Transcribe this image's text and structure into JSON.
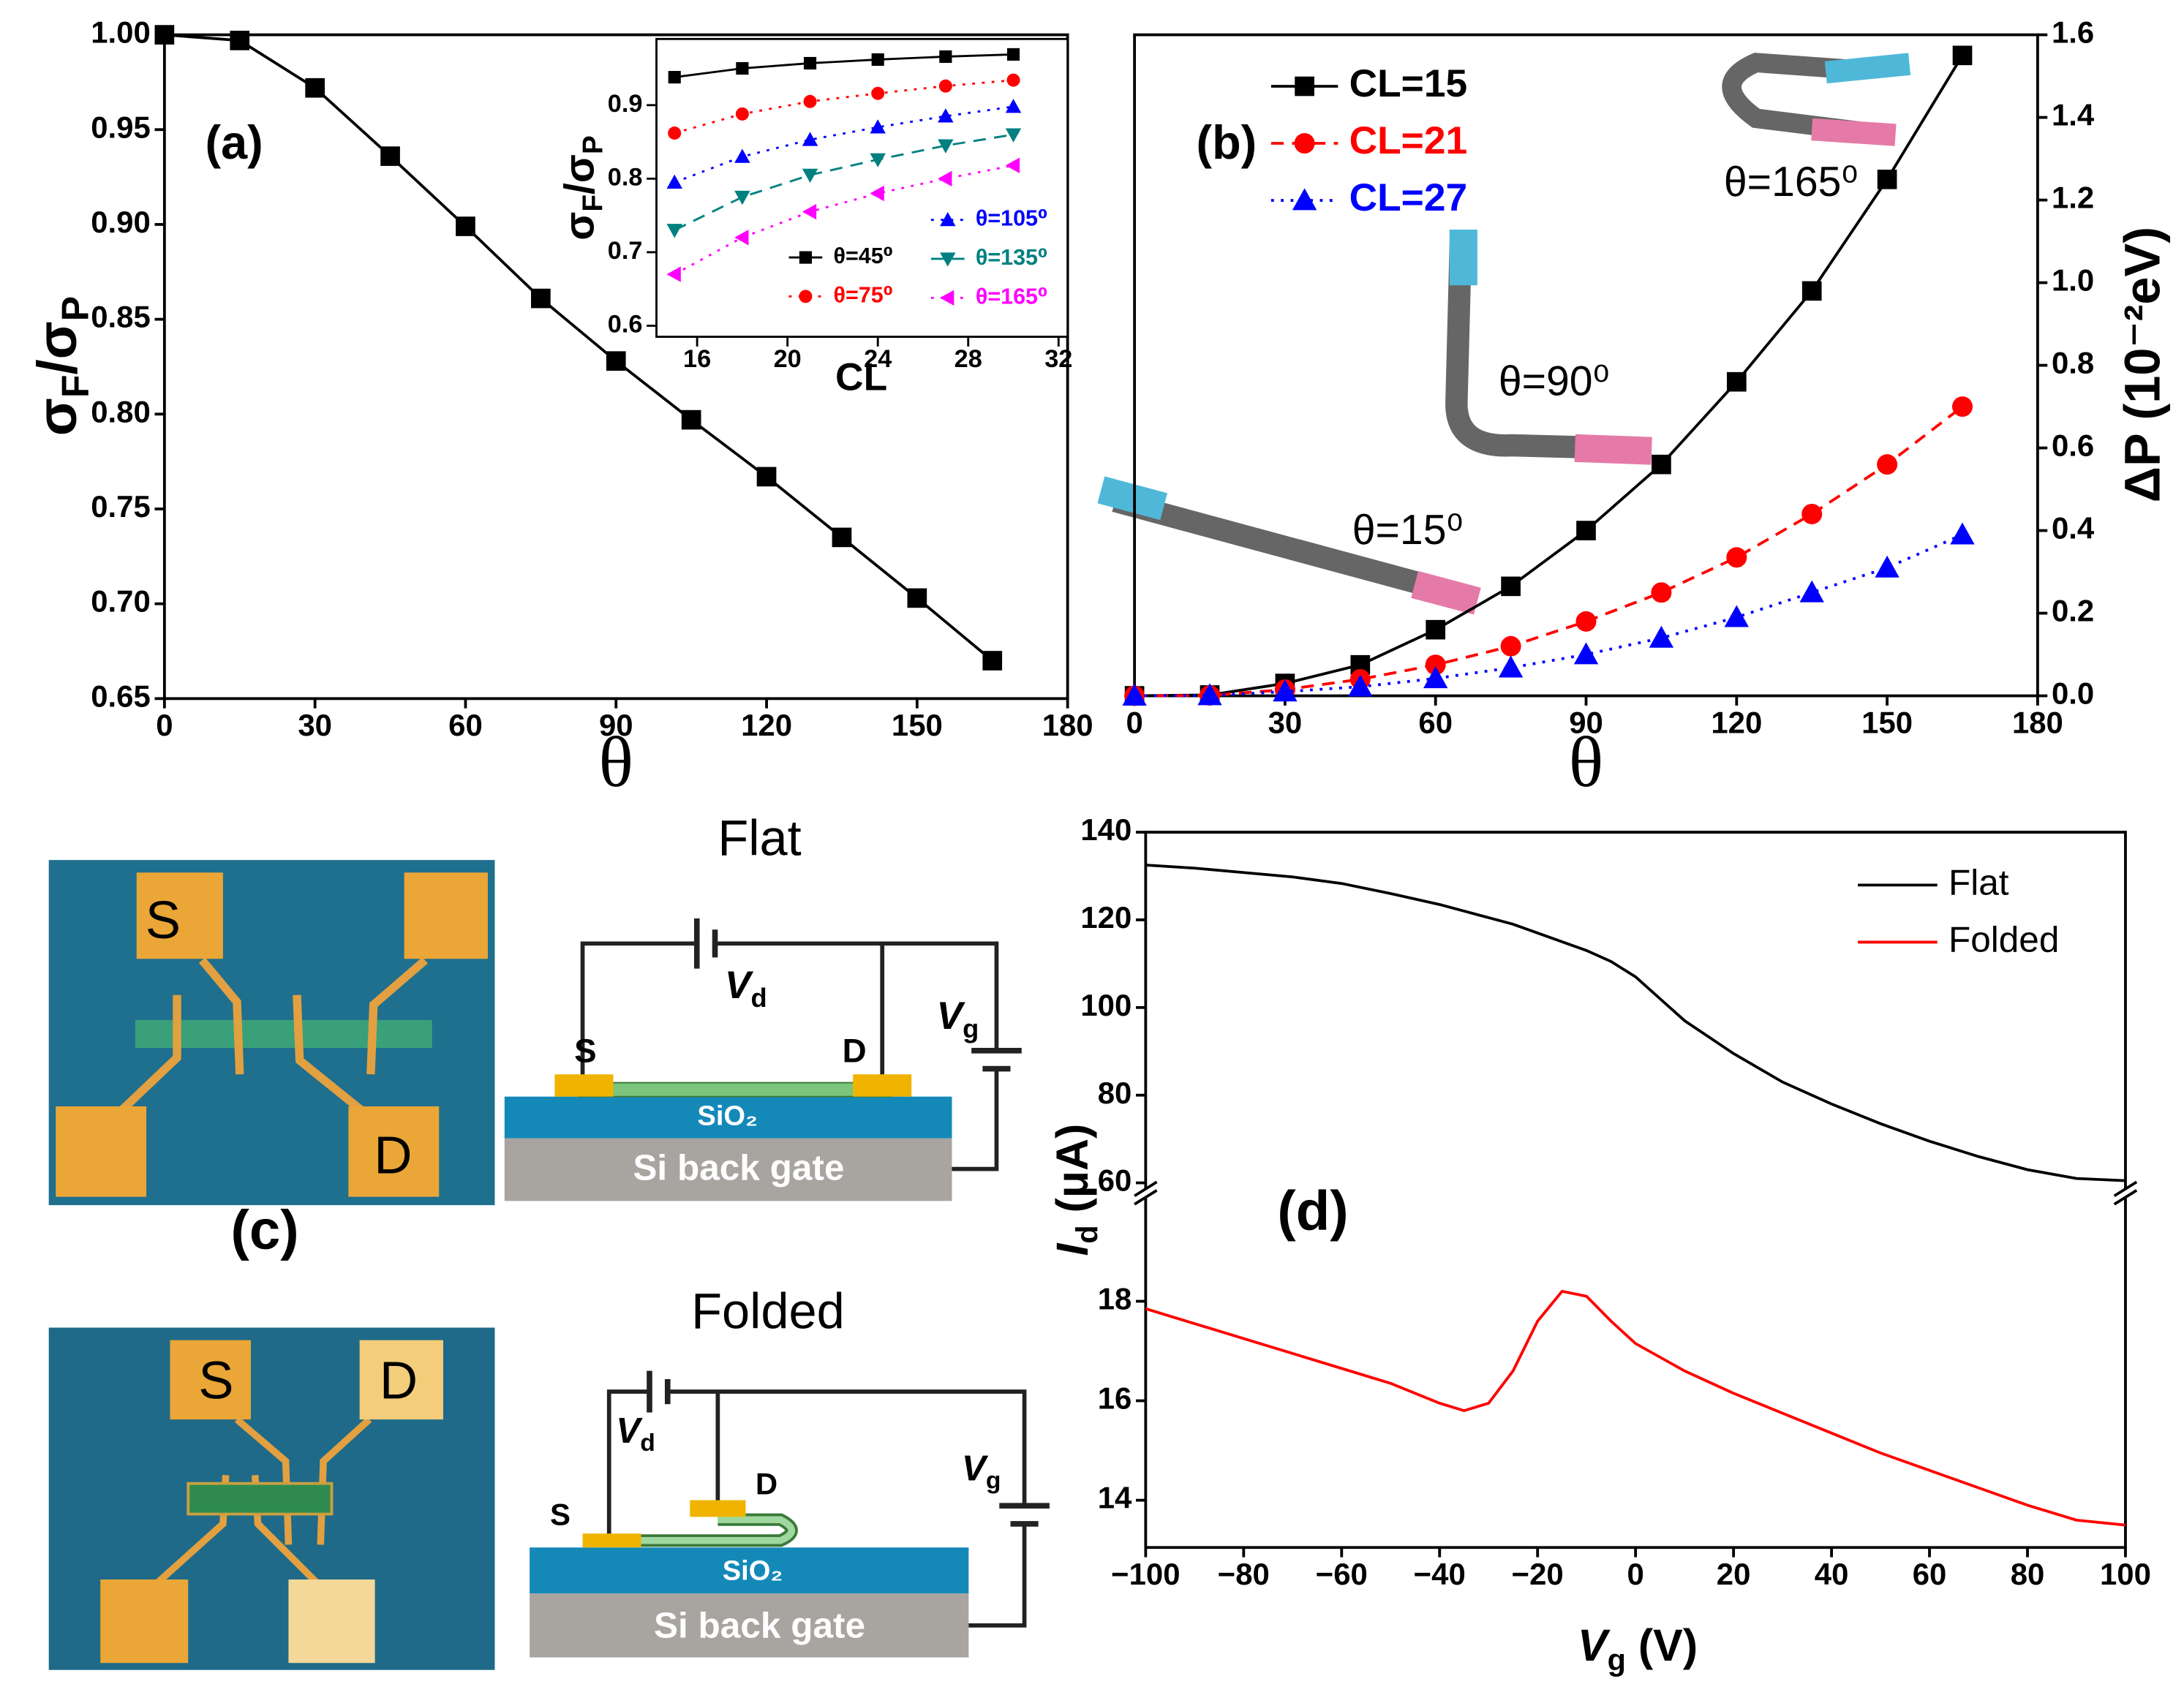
{
  "chart_data": [
    {
      "type": "line",
      "xlim": [
        0,
        180
      ],
      "ylim": [
        0.65,
        1.0
      ],
      "xticks": [
        0,
        30,
        60,
        90,
        120,
        150,
        180
      ],
      "yticks": [
        0.65,
        {
          "value": 0.7,
          "label": "0.70"
        },
        0.75,
        {
          "value": 0.8,
          "label": "0.80"
        },
        0.85,
        {
          "value": 0.9,
          "label": "0.90"
        },
        0.95,
        {
          "value": 1.0,
          "label": "1.00"
        }
      ],
      "xlabel": "θ",
      "ylabel": [
        "σ",
        "F",
        "/σ",
        "P"
      ],
      "x": [
        0,
        15,
        30,
        45,
        60,
        75,
        90,
        105,
        120,
        135,
        150,
        165
      ],
      "series": [
        {
          "color": "#000000",
          "marker": "square",
          "line_style": "solid",
          "values": [
            1.0,
            0.997,
            0.972,
            0.936,
            0.899,
            0.861,
            0.828,
            0.797,
            0.767,
            0.735,
            0.703,
            0.67
          ]
        }
      ],
      "annotations": [
        "(a)"
      ]
    },
    {
      "type": "line",
      "xlim": [
        14.2,
        32.4
      ],
      "ylim": [
        0.585,
        0.99
      ],
      "xticks": [
        16,
        20,
        24,
        28,
        32
      ],
      "yticks": [
        0.6,
        0.7,
        0.8,
        0.9
      ],
      "xlabel": "CL",
      "ylabel": [
        "σ",
        "F",
        "/σ",
        "P"
      ],
      "x": [
        15,
        18,
        21,
        24,
        27,
        30
      ],
      "series": [
        {
          "name": "θ=45⁰",
          "color": "#000000",
          "marker": "square",
          "line_style": "solid",
          "values": [
            0.938,
            0.95,
            0.957,
            0.962,
            0.966,
            0.969
          ]
        },
        {
          "name": "θ=75⁰",
          "color": "#ff0000",
          "marker": "circle",
          "line_style": "dotted",
          "values": [
            0.862,
            0.888,
            0.905,
            0.916,
            0.926,
            0.934
          ]
        },
        {
          "name": "θ=105⁰",
          "color": "#0000ff",
          "marker": "triangle-up",
          "line_style": "dotted",
          "values": [
            0.795,
            0.83,
            0.853,
            0.87,
            0.885,
            0.898
          ]
        },
        {
          "name": "θ=135⁰",
          "color": "#008080",
          "marker": "triangle-down",
          "line_style": "dashed",
          "values": [
            0.73,
            0.775,
            0.805,
            0.826,
            0.845,
            0.86
          ]
        },
        {
          "name": "θ=165⁰",
          "color": "#ff00ff",
          "marker": "triangle-left",
          "line_style": "dotted",
          "values": [
            0.67,
            0.72,
            0.755,
            0.78,
            0.8,
            0.818
          ]
        }
      ]
    },
    {
      "type": "line",
      "xlim": [
        0,
        180
      ],
      "ylim": [
        0,
        1.6
      ],
      "yaxis": "right",
      "xticks": [
        0,
        30,
        60,
        90,
        120,
        150,
        180
      ],
      "yticks": [
        {
          "value": 0,
          "label": "0.0"
        },
        0.2,
        0.4,
        0.6,
        0.8,
        {
          "value": 1.0,
          "label": "1.0"
        },
        1.2,
        1.4,
        1.6
      ],
      "xlabel": "θ",
      "ylabel": "ΔP (10⁻²eV)",
      "x": [
        0,
        15,
        30,
        45,
        60,
        75,
        90,
        105,
        120,
        135,
        150,
        165
      ],
      "series": [
        {
          "name": "CL=15",
          "color": "#000000",
          "marker": "square",
          "line_style": "solid",
          "values": [
            0.0,
            0.002,
            0.03,
            0.075,
            0.16,
            0.265,
            0.4,
            0.56,
            0.76,
            0.98,
            1.25,
            1.55
          ]
        },
        {
          "name": "CL=21",
          "color": "#ff0000",
          "marker": "circle",
          "line_style": "dashed",
          "values": [
            0.0,
            0.001,
            0.015,
            0.04,
            0.075,
            0.12,
            0.18,
            0.25,
            0.335,
            0.44,
            0.56,
            0.7
          ]
        },
        {
          "name": "CL=27",
          "color": "#0000ff",
          "marker": "triangle-up",
          "line_style": "dotted",
          "values": [
            0.0,
            0.001,
            0.01,
            0.022,
            0.042,
            0.068,
            0.1,
            0.14,
            0.19,
            0.25,
            0.31,
            0.39
          ]
        }
      ],
      "annotations": [
        "(b)",
        "θ=15⁰",
        "θ=90⁰",
        "θ=165⁰"
      ]
    },
    {
      "type": "line",
      "xlim": [
        -100,
        100
      ],
      "ylim": [
        13.05,
        140
      ],
      "ybreak": [
        20.1,
        58.5
      ],
      "xticks": [
        {
          "value": -100,
          "label": "−100"
        },
        {
          "value": -80,
          "label": "−80"
        },
        {
          "value": -60,
          "label": "−60"
        },
        {
          "value": -40,
          "label": "−40"
        },
        {
          "value": -20,
          "label": "−20"
        },
        0,
        20,
        40,
        60,
        80,
        100
      ],
      "yticks": [
        14,
        16,
        18,
        60,
        80,
        100,
        120,
        140
      ],
      "xlabel": [
        "V",
        "g",
        " (V)"
      ],
      "ylabel": [
        "I",
        "d",
        " (μA)"
      ],
      "x": [
        -100,
        -90,
        -80,
        -70,
        -60,
        -50,
        -40,
        -35,
        -30,
        -25,
        -20,
        -15,
        -10,
        -5,
        0,
        10,
        20,
        30,
        40,
        50,
        60,
        70,
        80,
        90,
        100
      ],
      "series": [
        {
          "name": "Flat",
          "color": "#000000",
          "line_style": "solid",
          "values": [
            132.5,
            131.8,
            130.8,
            129.8,
            128.3,
            126,
            123.5,
            122,
            120.5,
            119,
            117,
            115,
            113,
            110.5,
            107,
            97,
            89.5,
            83,
            78,
            73.5,
            69.5,
            66,
            63,
            61,
            60.5
          ]
        },
        {
          "name": "Folded",
          "color": "#ff0000",
          "line_style": "solid",
          "values": [
            17.85,
            17.55,
            17.25,
            16.95,
            16.65,
            16.35,
            15.95,
            15.8,
            15.95,
            16.6,
            17.6,
            18.2,
            18.1,
            17.6,
            17.15,
            16.6,
            16.15,
            15.75,
            15.35,
            14.95,
            14.6,
            14.25,
            13.9,
            13.6,
            13.5
          ]
        }
      ],
      "legend": "upper right",
      "annotations": [
        "(d)"
      ]
    }
  ],
  "panel_c": {
    "label": "(c)",
    "flat": {
      "title": "Flat",
      "photo_s": "S",
      "photo_d": "D",
      "s": "S",
      "d": "D",
      "vd": [
        "V",
        "d"
      ],
      "vg": [
        "V",
        "g"
      ],
      "oxide": "SiO₂",
      "gate": "Si back gate"
    },
    "folded": {
      "title": "Folded",
      "photo_s": "S",
      "photo_d": "D",
      "s": "S",
      "d": "D",
      "vd": [
        "V",
        "d"
      ],
      "vg": [
        "V",
        "g"
      ],
      "oxide": "SiO₂",
      "gate": "Si back gate"
    }
  }
}
